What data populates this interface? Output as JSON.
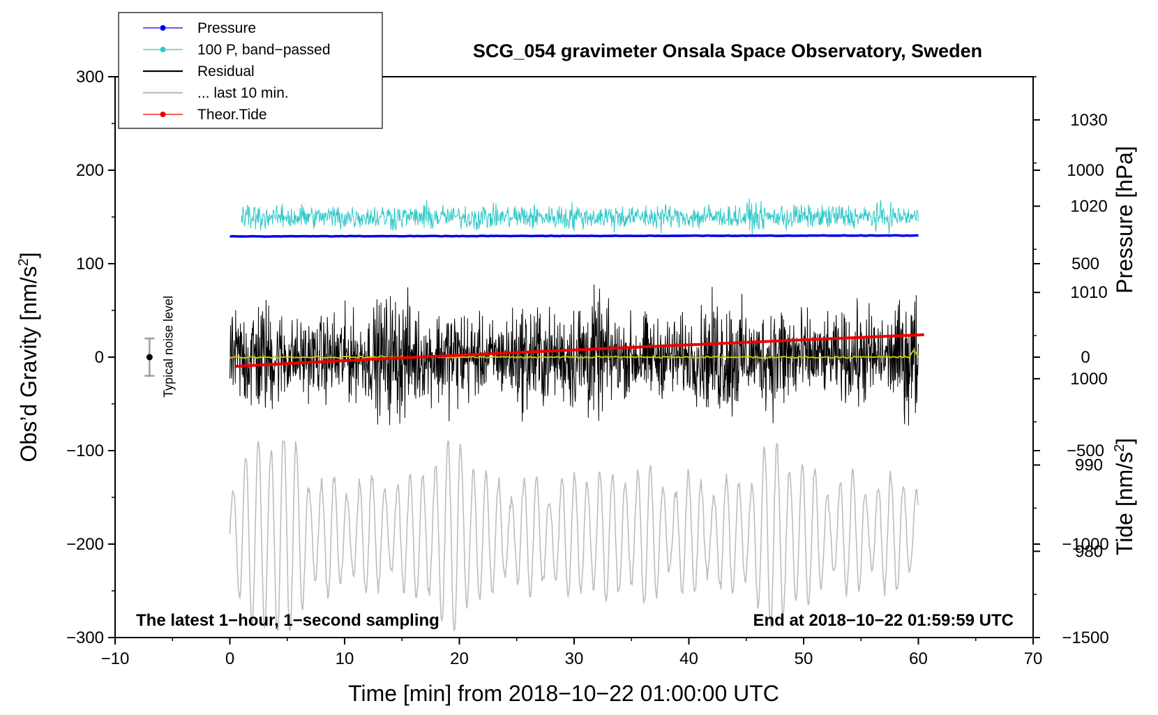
{
  "chart_data": {
    "type": "line",
    "title": "SCG_054 gravimeter Onsala Space Observatory, Sweden",
    "xlabel": "Time [min] from 2018−10−22 01:00:00 UTC",
    "ylabel_left_pre": "Obs’d Gravity [nm/s",
    "ylabel_left_sup": "2",
    "ylabel_left_post": "]",
    "ylabel_right_pressure": "Pressure [hPa]",
    "ylabel_right_tide_pre": "Tide [nm/s",
    "ylabel_right_tide_sup": "2",
    "ylabel_right_tide_post": "]",
    "xlim": [
      -10,
      70
    ],
    "ylim": [
      -300,
      300
    ],
    "pressure_axis_range": [
      970,
      1035
    ],
    "tide_axis_range": [
      -1500,
      1500
    ],
    "x_ticks": [
      "−10",
      "0",
      "10",
      "20",
      "30",
      "40",
      "50",
      "60",
      "70"
    ],
    "y_ticks": [
      "300",
      "200",
      "100",
      "0",
      "−100",
      "−200",
      "−300"
    ],
    "pressure_ticks": [
      "1030",
      "1020",
      "1010",
      "1000",
      "990",
      "980"
    ],
    "tide_ticks": [
      "1000",
      "500",
      "0",
      "−500",
      "−1000",
      "−1500"
    ],
    "x_tick_values": [
      -10,
      0,
      10,
      20,
      30,
      40,
      50,
      60,
      70
    ],
    "y_tick_values": [
      300,
      200,
      100,
      0,
      -100,
      -200,
      -300
    ],
    "pressure_tick_values": [
      1030,
      1020,
      1010,
      1000,
      990,
      980
    ],
    "tide_tick_values": [
      1000,
      500,
      0,
      -500,
      -1000,
      -1500
    ],
    "legend": [
      {
        "label": "Pressure",
        "color": "#0000ee",
        "style": "line-dot"
      },
      {
        "label": "100 P, band−passed",
        "color": "#30c8c8",
        "style": "line-dot"
      },
      {
        "label": "Residual",
        "color": "#000000",
        "style": "line"
      },
      {
        "label": "... last 10 min.",
        "color": "#bdbdbd",
        "style": "line"
      },
      {
        "label": "Theor.Tide",
        "color": "#ee0000",
        "style": "line-dot"
      }
    ],
    "series": [
      {
        "name": "Pressure",
        "axis": "pressure",
        "color": "#0000ee",
        "x_range": [
          0,
          60
        ],
        "start_value": 1016.5,
        "end_value": 1016.6
      },
      {
        "name": "100 P, band−passed",
        "axis": "gravity",
        "color": "#30c8c8",
        "x_range": [
          1,
          60
        ],
        "center": 150,
        "amplitude_approx": 25
      },
      {
        "name": "Residual",
        "axis": "gravity",
        "color": "#000000",
        "x_range": [
          0,
          60
        ],
        "center": 0,
        "amplitude_approx": 110
      },
      {
        "name": "Residual smoothed",
        "axis": "gravity",
        "color": "#c8c800",
        "x_range": [
          0,
          60
        ],
        "center": 0
      },
      {
        "name": "... last 10 min.",
        "axis": "gravity",
        "color": "#bdbdbd",
        "x_range": [
          0,
          60
        ],
        "center": -190,
        "amplitude_approx": 100
      },
      {
        "name": "Theor.Tide",
        "axis": "tide",
        "color": "#ee0000",
        "x_range": [
          0.5,
          60.5
        ],
        "start_value": -50,
        "end_value": 120
      }
    ],
    "noise_marker": {
      "label": "Typical noise level",
      "x": -7,
      "y": 0,
      "error": 20
    },
    "annotations": {
      "bottom_left": "The latest 1−hour, 1−second sampling",
      "bottom_right": "End at 2018−10−22 01:59:59 UTC"
    }
  }
}
